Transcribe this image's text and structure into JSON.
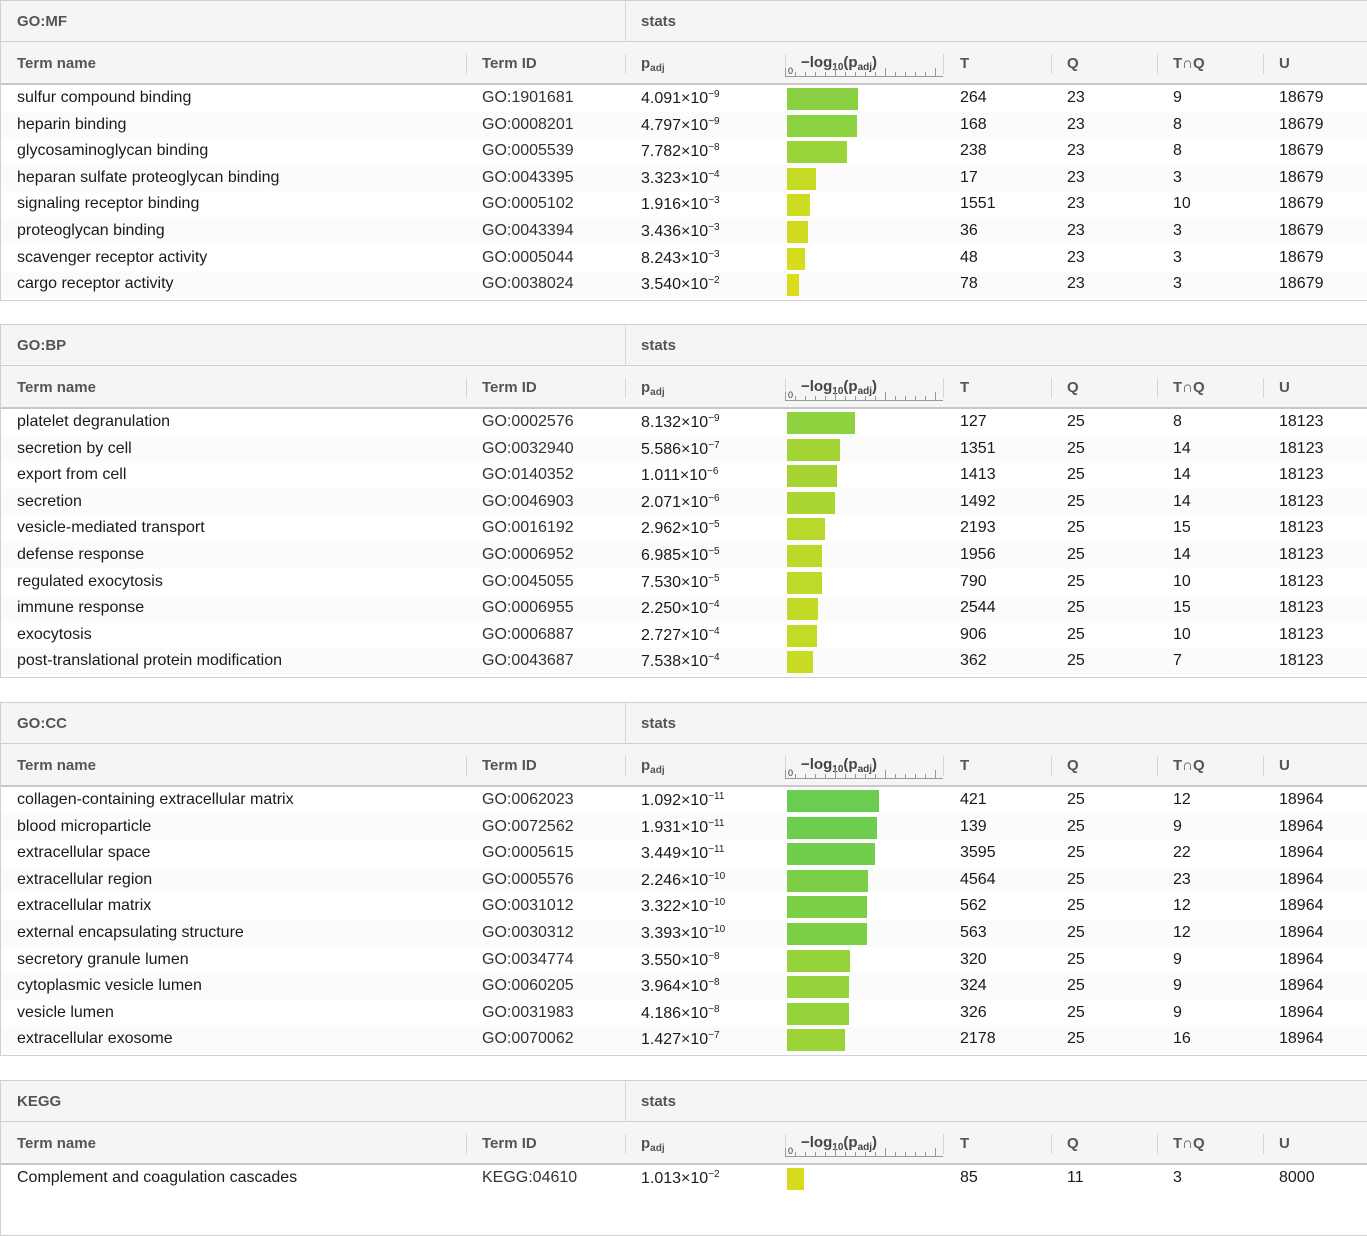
{
  "columns": {
    "stats": "stats",
    "term_name": "Term name",
    "term_id": "Term ID",
    "padj_main": "p",
    "padj_sub": "adj",
    "neglog_pre": "−log",
    "neglog_sub": "10",
    "neglog_mid": "(p",
    "neglog_sub2": "adj",
    "neglog_post": ")",
    "axis_zero": "0",
    "T": "T",
    "Q": "Q",
    "TQ": "T∩Q",
    "U": "U"
  },
  "colors": {
    "green": "#6acd4f",
    "yellow": "#dcdd1a"
  },
  "sections": [
    {
      "source": "GO:MF",
      "rows": [
        {
          "name": "sulfur compound binding",
          "id": "GO:1901681",
          "mant": "4.091",
          "exp": "-9",
          "T": "264",
          "Q": "23",
          "TQ": "9",
          "U": "18679"
        },
        {
          "name": "heparin binding",
          "id": "GO:0008201",
          "mant": "4.797",
          "exp": "-9",
          "T": "168",
          "Q": "23",
          "TQ": "8",
          "U": "18679"
        },
        {
          "name": "glycosaminoglycan binding",
          "id": "GO:0005539",
          "mant": "7.782",
          "exp": "-8",
          "T": "238",
          "Q": "23",
          "TQ": "8",
          "U": "18679"
        },
        {
          "name": "heparan sulfate proteoglycan binding",
          "id": "GO:0043395",
          "mant": "3.323",
          "exp": "-4",
          "T": "17",
          "Q": "23",
          "TQ": "3",
          "U": "18679"
        },
        {
          "name": "signaling receptor binding",
          "id": "GO:0005102",
          "mant": "1.916",
          "exp": "-3",
          "T": "1551",
          "Q": "23",
          "TQ": "10",
          "U": "18679"
        },
        {
          "name": "proteoglycan binding",
          "id": "GO:0043394",
          "mant": "3.436",
          "exp": "-3",
          "T": "36",
          "Q": "23",
          "TQ": "3",
          "U": "18679"
        },
        {
          "name": "scavenger receptor activity",
          "id": "GO:0005044",
          "mant": "8.243",
          "exp": "-3",
          "T": "48",
          "Q": "23",
          "TQ": "3",
          "U": "18679"
        },
        {
          "name": "cargo receptor activity",
          "id": "GO:0038024",
          "mant": "3.540",
          "exp": "-2",
          "T": "78",
          "Q": "23",
          "TQ": "3",
          "U": "18679"
        }
      ]
    },
    {
      "source": "GO:BP",
      "rows": [
        {
          "name": "platelet degranulation",
          "id": "GO:0002576",
          "mant": "8.132",
          "exp": "-9",
          "T": "127",
          "Q": "25",
          "TQ": "8",
          "U": "18123"
        },
        {
          "name": "secretion by cell",
          "id": "GO:0032940",
          "mant": "5.586",
          "exp": "-7",
          "T": "1351",
          "Q": "25",
          "TQ": "14",
          "U": "18123"
        },
        {
          "name": "export from cell",
          "id": "GO:0140352",
          "mant": "1.011",
          "exp": "-6",
          "T": "1413",
          "Q": "25",
          "TQ": "14",
          "U": "18123"
        },
        {
          "name": "secretion",
          "id": "GO:0046903",
          "mant": "2.071",
          "exp": "-6",
          "T": "1492",
          "Q": "25",
          "TQ": "14",
          "U": "18123"
        },
        {
          "name": "vesicle-mediated transport",
          "id": "GO:0016192",
          "mant": "2.962",
          "exp": "-5",
          "T": "2193",
          "Q": "25",
          "TQ": "15",
          "U": "18123"
        },
        {
          "name": "defense response",
          "id": "GO:0006952",
          "mant": "6.985",
          "exp": "-5",
          "T": "1956",
          "Q": "25",
          "TQ": "14",
          "U": "18123"
        },
        {
          "name": "regulated exocytosis",
          "id": "GO:0045055",
          "mant": "7.530",
          "exp": "-5",
          "T": "790",
          "Q": "25",
          "TQ": "10",
          "U": "18123"
        },
        {
          "name": "immune response",
          "id": "GO:0006955",
          "mant": "2.250",
          "exp": "-4",
          "T": "2544",
          "Q": "25",
          "TQ": "15",
          "U": "18123"
        },
        {
          "name": "exocytosis",
          "id": "GO:0006887",
          "mant": "2.727",
          "exp": "-4",
          "T": "906",
          "Q": "25",
          "TQ": "10",
          "U": "18123"
        },
        {
          "name": "post-translational protein modification",
          "id": "GO:0043687",
          "mant": "7.538",
          "exp": "-4",
          "T": "362",
          "Q": "25",
          "TQ": "7",
          "U": "18123"
        }
      ]
    },
    {
      "source": "GO:CC",
      "rows": [
        {
          "name": "collagen-containing extracellular matrix",
          "id": "GO:0062023",
          "mant": "1.092",
          "exp": "-11",
          "T": "421",
          "Q": "25",
          "TQ": "12",
          "U": "18964"
        },
        {
          "name": "blood microparticle",
          "id": "GO:0072562",
          "mant": "1.931",
          "exp": "-11",
          "T": "139",
          "Q": "25",
          "TQ": "9",
          "U": "18964"
        },
        {
          "name": "extracellular space",
          "id": "GO:0005615",
          "mant": "3.449",
          "exp": "-11",
          "T": "3595",
          "Q": "25",
          "TQ": "22",
          "U": "18964"
        },
        {
          "name": "extracellular region",
          "id": "GO:0005576",
          "mant": "2.246",
          "exp": "-10",
          "T": "4564",
          "Q": "25",
          "TQ": "23",
          "U": "18964"
        },
        {
          "name": "extracellular matrix",
          "id": "GO:0031012",
          "mant": "3.322",
          "exp": "-10",
          "T": "562",
          "Q": "25",
          "TQ": "12",
          "U": "18964"
        },
        {
          "name": "external encapsulating structure",
          "id": "GO:0030312",
          "mant": "3.393",
          "exp": "-10",
          "T": "563",
          "Q": "25",
          "TQ": "12",
          "U": "18964"
        },
        {
          "name": "secretory granule lumen",
          "id": "GO:0034774",
          "mant": "3.550",
          "exp": "-8",
          "T": "320",
          "Q": "25",
          "TQ": "9",
          "U": "18964"
        },
        {
          "name": "cytoplasmic vesicle lumen",
          "id": "GO:0060205",
          "mant": "3.964",
          "exp": "-8",
          "T": "324",
          "Q": "25",
          "TQ": "9",
          "U": "18964"
        },
        {
          "name": "vesicle lumen",
          "id": "GO:0031983",
          "mant": "4.186",
          "exp": "-8",
          "T": "326",
          "Q": "25",
          "TQ": "9",
          "U": "18964"
        },
        {
          "name": "extracellular exosome",
          "id": "GO:0070062",
          "mant": "1.427",
          "exp": "-7",
          "T": "2178",
          "Q": "25",
          "TQ": "16",
          "U": "18964"
        }
      ]
    },
    {
      "source": "KEGG",
      "rows": [
        {
          "name": "Complement and coagulation cascades",
          "id": "KEGG:04610",
          "mant": "1.013",
          "exp": "-2",
          "T": "85",
          "Q": "11",
          "TQ": "3",
          "U": "8000"
        }
      ]
    }
  ]
}
